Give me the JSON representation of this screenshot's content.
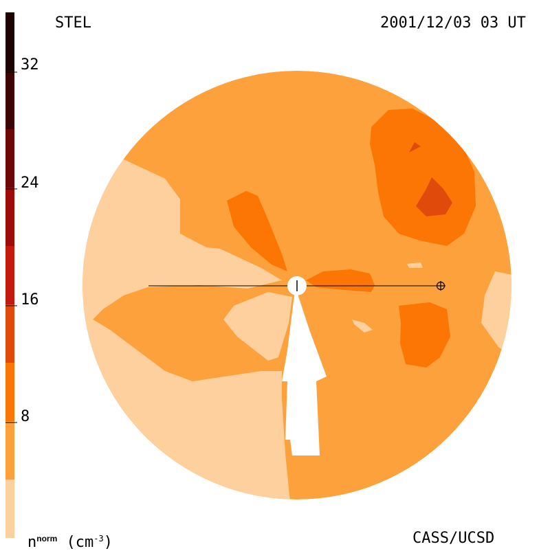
{
  "header": {
    "observatory": "STEL",
    "datetime": "2001/12/03 03 UT"
  },
  "footer": {
    "units_prefix": "n",
    "units_superscript": "norm",
    "units_suffix": "(cm",
    "units_exponent": "-3",
    "units_close": ")",
    "credit": "CASS/UCSD"
  },
  "colorbar": {
    "ticks": [
      "8",
      "16",
      "24",
      "32"
    ],
    "levels": [
      {
        "min": 0,
        "max": 4,
        "color": "#fdd09e"
      },
      {
        "min": 4,
        "max": 8,
        "color": "#fca13c"
      },
      {
        "min": 8,
        "max": 12,
        "color": "#fc7605"
      },
      {
        "min": 12,
        "max": 16,
        "color": "#e04b0c"
      },
      {
        "min": 16,
        "max": 20,
        "color": "#c41a0c"
      },
      {
        "min": 20,
        "max": 24,
        "color": "#9e0c08"
      },
      {
        "min": 24,
        "max": 28,
        "color": "#6e0808"
      },
      {
        "min": 28,
        "max": 32,
        "color": "#3c0404"
      },
      {
        "min": 32,
        "max": 36,
        "color": "#1c0200"
      }
    ]
  },
  "map": {
    "background_color": "#fca13c",
    "light_color": "#fdd09e",
    "mid_color": "#fc7605",
    "dark_color": "#e04b0c",
    "sun_color": "#ffffff",
    "earth_symbol": "⊕"
  }
}
